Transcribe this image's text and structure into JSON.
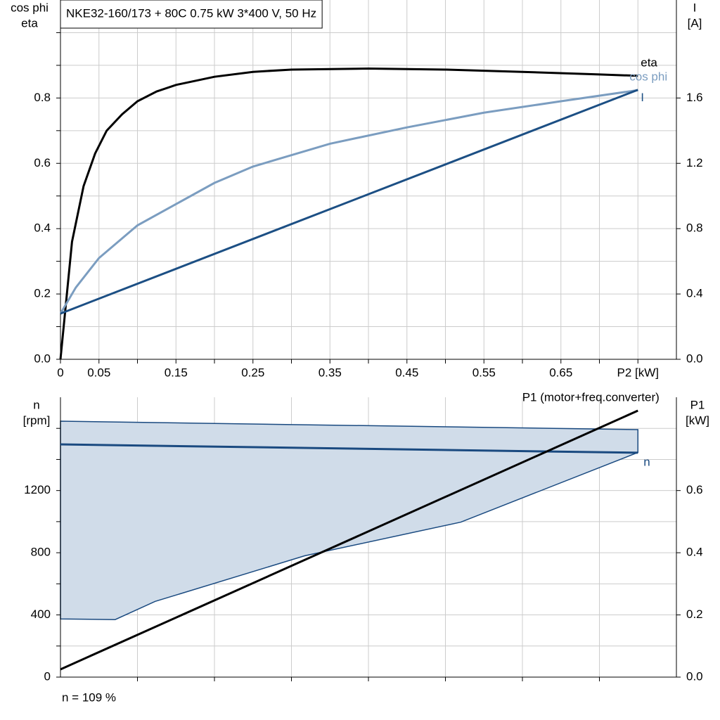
{
  "chart_data": [
    {
      "type": "line",
      "title": "NKE32-160/173 + 80C   0.75 kW   3*400 V, 50 Hz",
      "ylabel": [
        "cos phi",
        "eta"
      ],
      "y2label": [
        "I",
        "[A]"
      ],
      "xlim": [
        0,
        0.8
      ],
      "xticks": [
        0,
        0.05,
        0.15,
        0.25,
        0.35,
        0.45,
        0.55,
        0.65,
        {
          "value": 0.75,
          "label": "P2 [kW]"
        }
      ],
      "xminor": [
        0.1,
        0.2,
        0.3,
        0.4,
        0.5,
        0.6,
        0.7
      ],
      "ylim": [
        0,
        1.1
      ],
      "yticks": [
        {
          "value": 0,
          "label": "0.0"
        },
        0.2,
        0.4,
        0.6,
        0.8
      ],
      "yminor": [
        0.1,
        0.3,
        0.5,
        0.7,
        0.9,
        1.0
      ],
      "y2lim": [
        0,
        2.2
      ],
      "y2ticks": [
        {
          "value": 0,
          "label": "0.0"
        },
        0.4,
        0.8,
        1.2,
        1.6
      ],
      "grid": true,
      "series": [
        {
          "name": "eta",
          "color": "#000000",
          "x": [
            0,
            0.015,
            0.03,
            0.045,
            0.06,
            0.08,
            0.1,
            0.125,
            0.15,
            0.2,
            0.25,
            0.3,
            0.4,
            0.5,
            0.6,
            0.7,
            0.75
          ],
          "values": [
            0,
            0.36,
            0.53,
            0.63,
            0.7,
            0.75,
            0.79,
            0.82,
            0.84,
            0.865,
            0.88,
            0.887,
            0.89,
            0.887,
            0.88,
            0.872,
            0.868
          ]
        },
        {
          "name": "cos phi",
          "color": "#7b9dc0",
          "x": [
            0,
            0.02,
            0.05,
            0.1,
            0.15,
            0.2,
            0.25,
            0.35,
            0.45,
            0.55,
            0.65,
            0.75
          ],
          "values": [
            0.14,
            0.22,
            0.31,
            0.41,
            0.475,
            0.54,
            0.59,
            0.66,
            0.71,
            0.755,
            0.79,
            0.824
          ]
        },
        {
          "name": "I",
          "color": "#1c4f84",
          "axis": "y2",
          "x": [
            0,
            0.75
          ],
          "values": [
            0.28,
            1.65
          ]
        }
      ]
    },
    {
      "type": "line",
      "ylabel": [
        "n",
        "[rpm]"
      ],
      "y2label": [
        "P1",
        "[kW]"
      ],
      "xlim": [
        0,
        0.8
      ],
      "xminor": [
        0.1,
        0.2,
        0.3,
        0.4,
        0.5,
        0.6,
        0.7
      ],
      "ylim": [
        0,
        1800
      ],
      "yticks": [
        0,
        400,
        800,
        1200
      ],
      "yminor": [
        200,
        600,
        1000,
        1400,
        1600
      ],
      "y2lim": [
        0,
        0.9
      ],
      "y2ticks": [
        {
          "value": 0,
          "label": "0.0"
        },
        0.2,
        0.4,
        0.6
      ],
      "grid": true,
      "range": {
        "color": "#d0dce9",
        "edge": "#1a4a80",
        "upper": {
          "x": [
            0,
            0.75
          ],
          "values": [
            1646,
            1592
          ]
        },
        "lower": {
          "x": [
            0,
            0.071,
            0.123,
            0.317,
            0.52,
            0.75
          ],
          "values": [
            374,
            370,
            487,
            780,
            997,
            1445
          ]
        }
      },
      "series": [
        {
          "name": "n",
          "color": "#1a4a80",
          "x": [
            0,
            0.75
          ],
          "values": [
            1497,
            1443
          ]
        },
        {
          "name": "P1 (motor+freq.converter)",
          "color": "#000000",
          "axis": "y2",
          "x": [
            0,
            0.75
          ],
          "values": [
            0.025,
            0.857
          ]
        }
      ],
      "note": "n = 109 %"
    }
  ]
}
